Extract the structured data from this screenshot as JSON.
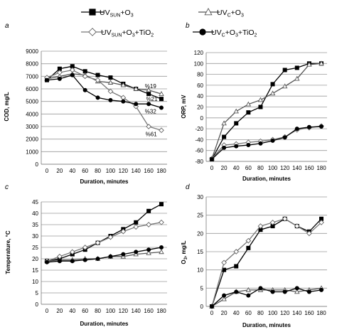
{
  "legend": [
    {
      "key": "uv_sun_o3",
      "marker": "square-filled",
      "main": "UV",
      "sub": "SUN",
      "tail": "+O",
      "tailsub": "3"
    },
    {
      "key": "uv_c_o3",
      "marker": "triangle-open",
      "main": "UV",
      "sub": "C",
      "tail": "+O",
      "tailsub": "3"
    },
    {
      "key": "uv_sun_o3_tio2",
      "marker": "diamond-open",
      "main": "UV",
      "sub": "SUN",
      "tail": "+O",
      "tailsub": "3",
      "tail2": "+TiO",
      "tail2sub": "2"
    },
    {
      "key": "uv_c_o3_tio2",
      "marker": "circle-filled",
      "main": "UV",
      "sub": "C",
      "tail": "+O",
      "tailsub": "3",
      "tail2": "+TiO",
      "tail2sub": "2"
    }
  ],
  "chart_data": [
    {
      "id": "a",
      "panel_letter": "a",
      "type": "line",
      "xlabel": "Duration, minutes",
      "ylabel": "COD, mg/L",
      "x": [
        0,
        20,
        40,
        60,
        80,
        100,
        120,
        140,
        160,
        180
      ],
      "xlim": [
        0,
        180
      ],
      "ylim": [
        0,
        9000
      ],
      "yticks": [
        0,
        1000,
        2000,
        3000,
        4000,
        5000,
        6000,
        7000,
        8000,
        9000
      ],
      "grid": "horizontal",
      "series": [
        {
          "key": "uv_sun_o3",
          "values": [
            6700,
            7600,
            7800,
            7400,
            7100,
            6900,
            6400,
            6000,
            5600,
            5200
          ]
        },
        {
          "key": "uv_c_o3",
          "values": [
            6800,
            7000,
            7200,
            7100,
            6600,
            6500,
            6300,
            6000,
            5900,
            5600
          ]
        },
        {
          "key": "uv_sun_o3_tio2",
          "values": [
            6900,
            7300,
            7500,
            7000,
            6700,
            5800,
            5300,
            4600,
            3000,
            2700
          ]
        },
        {
          "key": "uv_c_o3_tio2",
          "values": [
            6700,
            6800,
            7100,
            5900,
            5300,
            5100,
            5000,
            4800,
            4800,
            4500
          ]
        }
      ],
      "annotations": [
        {
          "text": "%19",
          "x": 163,
          "y": 6050
        },
        {
          "text": "%21",
          "x": 165,
          "y": 5050
        },
        {
          "text": "%32",
          "x": 163,
          "y": 4050
        },
        {
          "text": "%61",
          "x": 164,
          "y": 2250
        }
      ]
    },
    {
      "id": "b",
      "panel_letter": "b",
      "type": "line",
      "xlabel": "Duration, minutes",
      "ylabel": "ORP, mV",
      "x": [
        0,
        20,
        40,
        60,
        80,
        100,
        120,
        140,
        160,
        180
      ],
      "xlim": [
        0,
        180
      ],
      "ylim": [
        -80,
        120
      ],
      "yticks": [
        -80,
        -60,
        -40,
        -20,
        0,
        20,
        40,
        60,
        80,
        100,
        120
      ],
      "grid": "horizontal",
      "series": [
        {
          "key": "uv_sun_o3",
          "values": [
            -76,
            -35,
            -10,
            10,
            20,
            62,
            88,
            92,
            100,
            100
          ]
        },
        {
          "key": "uv_c_o3",
          "values": [
            -75,
            -10,
            12,
            25,
            33,
            45,
            58,
            72,
            98,
            100
          ]
        },
        {
          "key": "uv_sun_o3_tio2",
          "values": [
            -75,
            -50,
            -48,
            -45,
            -43,
            -40,
            -35,
            -22,
            -18,
            -15
          ]
        },
        {
          "key": "uv_c_o3_tio2",
          "values": [
            -76,
            -55,
            -52,
            -50,
            -47,
            -42,
            -36,
            -20,
            -17,
            -16
          ]
        }
      ]
    },
    {
      "id": "c",
      "panel_letter": "c",
      "type": "line",
      "xlabel": "Duration, minutes",
      "ylabel": "Temperature, °C",
      "x": [
        0,
        20,
        40,
        60,
        80,
        100,
        120,
        140,
        160,
        180
      ],
      "xlim": [
        0,
        180
      ],
      "ylim": [
        0,
        45
      ],
      "yticks": [
        0,
        5,
        10,
        15,
        20,
        25,
        30,
        35,
        40,
        45
      ],
      "grid": "horizontal",
      "series": [
        {
          "key": "uv_sun_o3",
          "values": [
            19,
            20,
            22,
            24,
            27,
            30,
            33,
            36,
            41,
            44
          ]
        },
        {
          "key": "uv_c_o3",
          "values": [
            19,
            19.5,
            19.5,
            20,
            20,
            21,
            21,
            22,
            22.5,
            23
          ]
        },
        {
          "key": "uv_sun_o3_tio2",
          "values": [
            19,
            21,
            23,
            25,
            27,
            29.5,
            32,
            34,
            35,
            36
          ]
        },
        {
          "key": "uv_c_o3_tio2",
          "values": [
            18.5,
            19,
            19,
            19.5,
            20,
            21,
            22,
            23,
            24,
            25
          ]
        }
      ]
    },
    {
      "id": "d",
      "panel_letter": "d",
      "type": "line",
      "xlabel": "Duration, minutes",
      "ylabel": "O3, mg/L",
      "x": [
        0,
        20,
        40,
        60,
        80,
        100,
        120,
        140,
        160,
        180
      ],
      "xlim": [
        0,
        180
      ],
      "ylim": [
        0,
        30
      ],
      "yticks": [
        0,
        5,
        10,
        15,
        20,
        25,
        30
      ],
      "grid": "horizontal",
      "series": [
        {
          "key": "uv_sun_o3",
          "values": [
            0,
            10,
            11,
            16,
            21,
            22,
            24,
            22,
            20.5,
            24
          ]
        },
        {
          "key": "uv_c_o3",
          "values": [
            0,
            2,
            4,
            4.5,
            4.5,
            4.5,
            4.5,
            4,
            4.5,
            5
          ]
        },
        {
          "key": "uv_sun_o3_tio2",
          "values": [
            0,
            12,
            15,
            18,
            22,
            23,
            24,
            22,
            20,
            23
          ]
        },
        {
          "key": "uv_c_o3_tio2",
          "values": [
            0,
            3,
            4,
            3,
            5,
            4,
            4,
            5,
            4,
            4.5
          ]
        }
      ]
    }
  ]
}
